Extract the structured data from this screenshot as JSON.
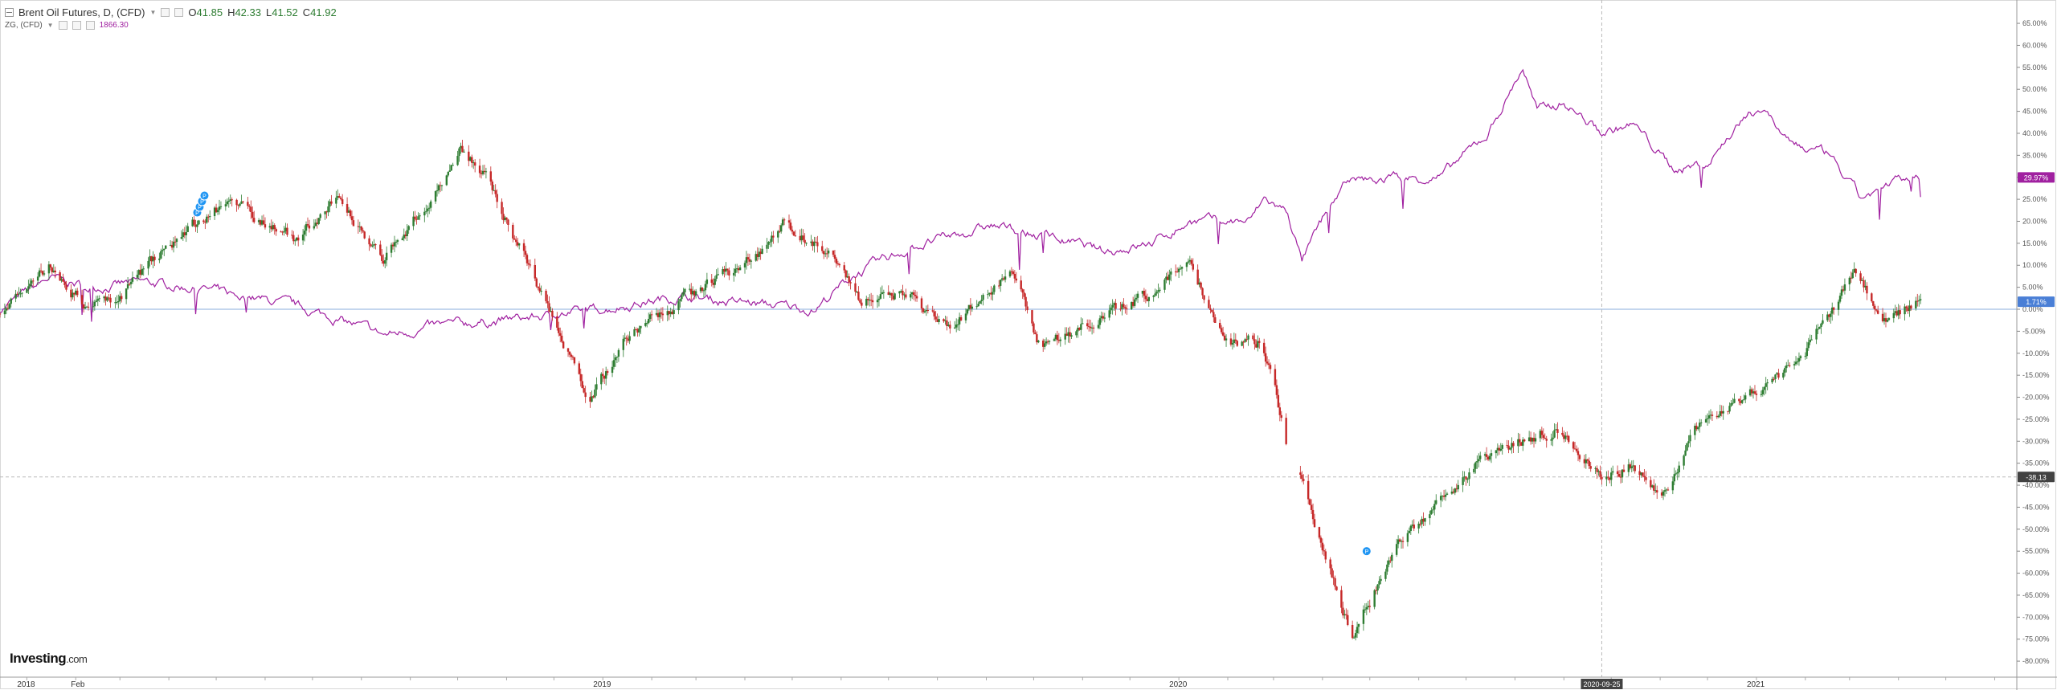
{
  "header": {
    "symbol_title": "Brent Oil Futures, D, (CFD)",
    "ohlc": [
      {
        "label": "O",
        "value": "41.85"
      },
      {
        "label": "H",
        "value": "42.33"
      },
      {
        "label": "L",
        "value": "41.52"
      },
      {
        "label": "C",
        "value": "41.92"
      }
    ],
    "compare_symbol": "ZG, (CFD)",
    "compare_value": "1866.30"
  },
  "logo": {
    "brand": "Investing",
    "suffix": ".com"
  },
  "colors": {
    "up_candle": "#2e7d32",
    "down_candle": "#c62828",
    "compare_line": "#a020a0",
    "baseline": "#88aedc",
    "price_badge": "#4a7fd6",
    "compare_badge": "#a020a0",
    "crosshair_badge": "#424242"
  },
  "badges": {
    "compare_last": "29.97%",
    "price_last": "1.71%",
    "crosshair_y": "-38.13",
    "crosshair_x": "2020-09-25"
  },
  "chart_data": {
    "type": "line",
    "title": "Brent Oil Futures, D, (CFD)",
    "xlabel": "",
    "ylabel": "",
    "yaxis_unit": "percent change",
    "ylim": [
      -80,
      67
    ],
    "yticks": [
      "65.00%",
      "60.00%",
      "55.00%",
      "50.00%",
      "45.00%",
      "40.00%",
      "35.00%",
      "30.00%",
      "25.00%",
      "20.00%",
      "15.00%",
      "10.00%",
      "5.00%",
      "0.00%",
      "-5.00%",
      "-10.00%",
      "-15.00%",
      "-20.00%",
      "-25.00%",
      "-30.00%",
      "-35.00%",
      "-40.00%",
      "-45.00%",
      "-50.00%",
      "-55.00%",
      "-60.00%",
      "-65.00%",
      "-70.00%",
      "-75.00%",
      "-80.00%"
    ],
    "xticks": [
      {
        "date": "2018-01-01",
        "label": "2018"
      },
      {
        "date": "2018-02-01",
        "label": "Feb"
      },
      {
        "date": "2019-01-01",
        "label": "2019"
      },
      {
        "date": "2020-01-01",
        "label": "2020"
      },
      {
        "date": "2021-01-01",
        "label": "2021"
      }
    ],
    "xlim": [
      "2017-12-15",
      "2021-06-15"
    ],
    "grid": false,
    "baseline": 0,
    "series": [
      {
        "name": "Brent Oil Futures, D, (CFD)",
        "kind": "candlestick",
        "points": [
          [
            "2017-12-15",
            -1
          ],
          [
            "2018-01-15",
            10
          ],
          [
            "2018-02-10",
            0
          ],
          [
            "2018-03-01",
            3
          ],
          [
            "2018-04-01",
            15
          ],
          [
            "2018-05-10",
            25
          ],
          [
            "2018-06-01",
            20
          ],
          [
            "2018-06-20",
            16
          ],
          [
            "2018-07-15",
            25
          ],
          [
            "2018-08-15",
            12
          ],
          [
            "2018-09-15",
            25
          ],
          [
            "2018-10-03",
            37
          ],
          [
            "2018-10-20",
            30
          ],
          [
            "2018-11-15",
            10
          ],
          [
            "2018-12-24",
            -20
          ],
          [
            "2019-01-20",
            -5
          ],
          [
            "2019-02-20",
            2
          ],
          [
            "2019-04-01",
            10
          ],
          [
            "2019-04-25",
            19
          ],
          [
            "2019-05-20",
            15
          ],
          [
            "2019-06-12",
            2
          ],
          [
            "2019-07-15",
            4
          ],
          [
            "2019-08-07",
            -5
          ],
          [
            "2019-09-16",
            8
          ],
          [
            "2019-10-05",
            -8
          ],
          [
            "2019-11-15",
            -2
          ],
          [
            "2019-12-15",
            4
          ],
          [
            "2020-01-06",
            12
          ],
          [
            "2020-02-01",
            -8
          ],
          [
            "2020-02-20",
            -7
          ],
          [
            "2020-03-01",
            -17
          ],
          [
            "2020-03-09",
            -30
          ],
          [
            "2020-03-18",
            -38
          ],
          [
            "2020-04-01",
            -55
          ],
          [
            "2020-04-21",
            -75
          ],
          [
            "2020-05-15",
            -55
          ],
          [
            "2020-06-10",
            -45
          ],
          [
            "2020-07-15",
            -33
          ],
          [
            "2020-08-26",
            -27
          ],
          [
            "2020-09-25",
            -38
          ],
          [
            "2020-10-15",
            -35
          ],
          [
            "2020-11-02",
            -42
          ],
          [
            "2020-11-25",
            -27
          ],
          [
            "2020-12-15",
            -22
          ],
          [
            "2021-01-15",
            -15
          ],
          [
            "2021-02-01",
            -10
          ],
          [
            "2021-03-05",
            8
          ],
          [
            "2021-03-23",
            -2
          ],
          [
            "2021-04-15",
            2
          ]
        ]
      },
      {
        "name": "ZG, (CFD)",
        "kind": "line",
        "points": [
          [
            "2017-12-15",
            0
          ],
          [
            "2018-01-15",
            7
          ],
          [
            "2018-02-10",
            5
          ],
          [
            "2018-03-15",
            6
          ],
          [
            "2018-04-15",
            5
          ],
          [
            "2018-05-15",
            3
          ],
          [
            "2018-06-15",
            1
          ],
          [
            "2018-07-15",
            -2
          ],
          [
            "2018-08-16",
            -6
          ],
          [
            "2018-09-15",
            -4
          ],
          [
            "2018-10-15",
            -3
          ],
          [
            "2018-11-15",
            -2
          ],
          [
            "2018-12-15",
            -1
          ],
          [
            "2019-01-15",
            1
          ],
          [
            "2019-02-20",
            3
          ],
          [
            "2019-03-15",
            2
          ],
          [
            "2019-04-15",
            1
          ],
          [
            "2019-05-15",
            0
          ],
          [
            "2019-06-10",
            8
          ],
          [
            "2019-07-15",
            14
          ],
          [
            "2019-08-15",
            17
          ],
          [
            "2019-09-04",
            19
          ],
          [
            "2019-10-15",
            16
          ],
          [
            "2019-11-15",
            13
          ],
          [
            "2019-12-15",
            15
          ],
          [
            "2020-01-08",
            20
          ],
          [
            "2020-02-15",
            20
          ],
          [
            "2020-02-24",
            25
          ],
          [
            "2020-03-10",
            22
          ],
          [
            "2020-03-19",
            11
          ],
          [
            "2020-04-01",
            20
          ],
          [
            "2020-04-14",
            28
          ],
          [
            "2020-05-15",
            30
          ],
          [
            "2020-06-15",
            30
          ],
          [
            "2020-07-15",
            40
          ],
          [
            "2020-08-06",
            55
          ],
          [
            "2020-08-15",
            45
          ],
          [
            "2020-09-01",
            47
          ],
          [
            "2020-09-25",
            40
          ],
          [
            "2020-10-15",
            42
          ],
          [
            "2020-11-09",
            32
          ],
          [
            "2020-12-01",
            33
          ],
          [
            "2020-12-20",
            42
          ],
          [
            "2021-01-06",
            46
          ],
          [
            "2021-01-20",
            38
          ],
          [
            "2021-02-15",
            35
          ],
          [
            "2021-03-08",
            25
          ],
          [
            "2021-03-25",
            28
          ],
          [
            "2021-04-15",
            30
          ]
        ]
      }
    ],
    "annotations": [
      {
        "date": "2018-04-20",
        "value": 22,
        "label": "P",
        "count": 4
      },
      {
        "date": "2020-04-30",
        "value": -55,
        "label": "P",
        "count": 1
      }
    ]
  }
}
